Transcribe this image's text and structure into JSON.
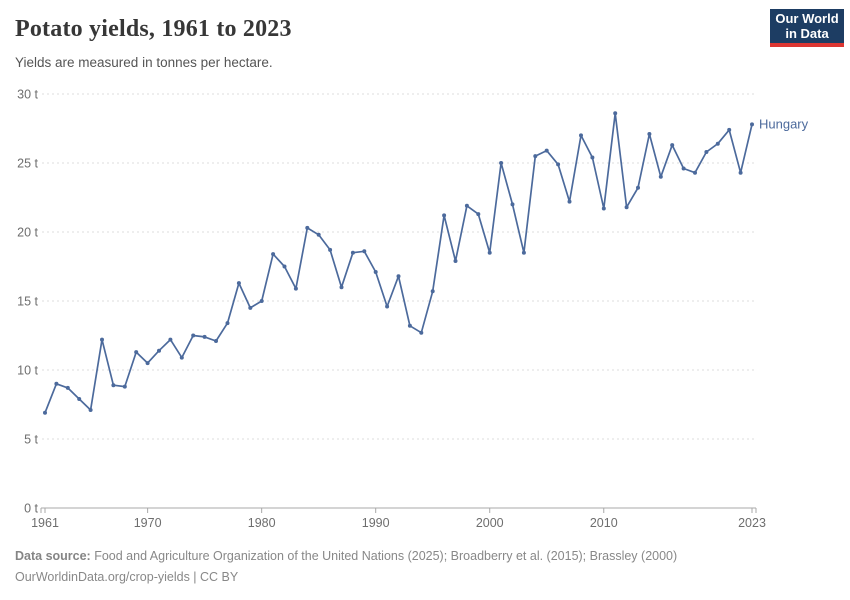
{
  "header": {
    "title": "Potato yields, 1961 to 2023",
    "subtitle": "Yields are measured in tonnes per hectare."
  },
  "logo": {
    "line1": "Our World",
    "line2": "in Data",
    "bg_color": "#1d3d63",
    "bar_color": "#dc3632"
  },
  "chart_data": {
    "type": "line",
    "title": "Potato yields, 1961 to 2023",
    "unit": "t",
    "xlabel": "",
    "ylabel": "tonnes per hectare",
    "xlim": [
      1961,
      2023
    ],
    "ylim": [
      0,
      30
    ],
    "grid": "horizontal-dashed",
    "legend_position": "end-of-line-label",
    "x_ticks": [
      1961,
      1970,
      1980,
      1990,
      2000,
      2010,
      2023
    ],
    "y_ticks": [
      0,
      5,
      10,
      15,
      20,
      25,
      30
    ],
    "y_tick_suffix": " t",
    "line_color": "#4c6a9c",
    "series": [
      {
        "name": "Hungary",
        "color": "#4c6a9c",
        "x": [
          1961,
          1962,
          1963,
          1964,
          1965,
          1966,
          1967,
          1968,
          1969,
          1970,
          1971,
          1972,
          1973,
          1974,
          1975,
          1976,
          1977,
          1978,
          1979,
          1980,
          1981,
          1982,
          1983,
          1984,
          1985,
          1986,
          1987,
          1988,
          1989,
          1990,
          1991,
          1992,
          1993,
          1994,
          1995,
          1996,
          1997,
          1998,
          1999,
          2000,
          2001,
          2002,
          2003,
          2004,
          2005,
          2006,
          2007,
          2008,
          2009,
          2010,
          2011,
          2012,
          2013,
          2014,
          2015,
          2016,
          2017,
          2018,
          2019,
          2020,
          2021,
          2022,
          2023
        ],
        "values": [
          6.9,
          9.0,
          8.7,
          7.9,
          7.1,
          12.2,
          8.9,
          8.8,
          11.3,
          10.5,
          11.4,
          12.2,
          10.9,
          12.5,
          12.4,
          12.1,
          13.4,
          16.3,
          14.5,
          15.0,
          18.4,
          17.5,
          15.9,
          20.3,
          19.8,
          18.7,
          16.0,
          18.5,
          18.6,
          17.1,
          14.6,
          16.8,
          13.2,
          12.7,
          15.7,
          21.2,
          17.9,
          21.9,
          21.3,
          18.5,
          25.0,
          22.0,
          18.5,
          25.5,
          25.9,
          24.9,
          22.2,
          27.0,
          25.4,
          21.7,
          28.6,
          21.8,
          23.2,
          27.1,
          24.0,
          26.3,
          24.6,
          24.3,
          25.8,
          26.4,
          27.4,
          24.3,
          27.8
        ]
      }
    ]
  },
  "footer": {
    "datasource_label": "Data source:",
    "datasource_text": " Food and Agriculture Organization of the United Nations (2025); Broadberry et al. (2015); Brassley (2000)",
    "link_line": "OurWorldinData.org/crop-yields | CC BY"
  }
}
